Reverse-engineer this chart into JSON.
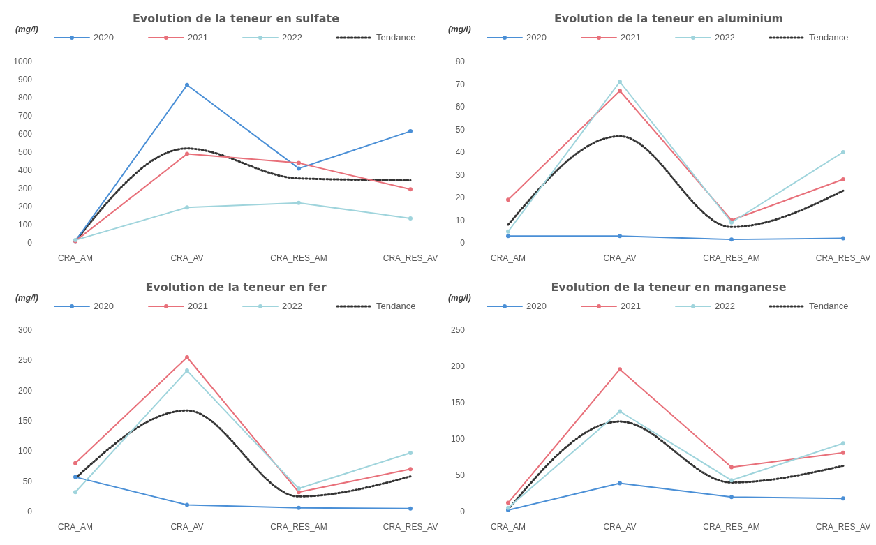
{
  "chart_data": [
    {
      "type": "line",
      "title": "Evolution de la teneur en sulfate",
      "ylabel": "(mg/l)",
      "categories": [
        "CRA_AM",
        "CRA_AV",
        "CRA_RES_AM",
        "CRA_RES_AV"
      ],
      "ylim": [
        0,
        1000
      ],
      "yticks": [
        0,
        100,
        200,
        300,
        400,
        500,
        600,
        700,
        800,
        900,
        1000
      ],
      "legend": "top",
      "marker": "circle",
      "line_style": "solid",
      "series": [
        {
          "name": "2020",
          "color": "#4a8fd6",
          "values": [
            10,
            870,
            410,
            615
          ]
        },
        {
          "name": "2021",
          "color": "#e8707a",
          "values": [
            10,
            490,
            440,
            295
          ]
        },
        {
          "name": "2022",
          "color": "#9fd4dc",
          "values": [
            15,
            195,
            220,
            135
          ]
        },
        {
          "name": "Tendance",
          "color": "#333333",
          "values": [
            10,
            520,
            355,
            345
          ],
          "marker": "none",
          "line_style": "dotted"
        }
      ]
    },
    {
      "type": "line",
      "title": "Evolution de la teneur en aluminium",
      "ylabel": "(mg/l)",
      "categories": [
        "CRA_AM",
        "CRA_AV",
        "CRA_RES_AM",
        "CRA_RES_AV"
      ],
      "ylim": [
        0,
        80
      ],
      "yticks": [
        0,
        10,
        20,
        30,
        40,
        50,
        60,
        70,
        80
      ],
      "legend": "top",
      "marker": "circle",
      "line_style": "solid",
      "series": [
        {
          "name": "2020",
          "color": "#4a8fd6",
          "values": [
            3,
            3,
            1.5,
            2
          ]
        },
        {
          "name": "2021",
          "color": "#e8707a",
          "values": [
            19,
            67,
            10,
            28
          ]
        },
        {
          "name": "2022",
          "color": "#9fd4dc",
          "values": [
            5,
            71,
            9,
            40
          ]
        },
        {
          "name": "Tendance",
          "color": "#333333",
          "values": [
            8,
            47,
            7,
            23
          ],
          "marker": "none",
          "line_style": "dotted"
        }
      ]
    },
    {
      "type": "line",
      "title": "Evolution de la teneur en fer",
      "ylabel": "(mg/l)",
      "categories": [
        "CRA_AM",
        "CRA_AV",
        "CRA_RES_AM",
        "CRA_RES_AV"
      ],
      "ylim": [
        0,
        300
      ],
      "yticks": [
        0,
        50,
        100,
        150,
        200,
        250,
        300
      ],
      "legend": "top",
      "marker": "circle",
      "line_style": "solid",
      "series": [
        {
          "name": "2020",
          "color": "#4a8fd6",
          "values": [
            57,
            11,
            6,
            5
          ]
        },
        {
          "name": "2021",
          "color": "#e8707a",
          "values": [
            80,
            255,
            32,
            70
          ]
        },
        {
          "name": "2022",
          "color": "#9fd4dc",
          "values": [
            32,
            233,
            38,
            97
          ]
        },
        {
          "name": "Tendance",
          "color": "#333333",
          "values": [
            55,
            167,
            25,
            58
          ],
          "marker": "none",
          "line_style": "dotted"
        }
      ]
    },
    {
      "type": "line",
      "title": "Evolution de la teneur en manganese",
      "ylabel": "(mg/l)",
      "categories": [
        "CRA_AM",
        "CRA_AV",
        "CRA_RES_AM",
        "CRA_RES_AV"
      ],
      "ylim": [
        0,
        250
      ],
      "yticks": [
        0,
        50,
        100,
        150,
        200,
        250
      ],
      "legend": "top",
      "marker": "circle",
      "line_style": "solid",
      "series": [
        {
          "name": "2020",
          "color": "#4a8fd6",
          "values": [
            2,
            39,
            20,
            18
          ]
        },
        {
          "name": "2021",
          "color": "#e8707a",
          "values": [
            12,
            196,
            61,
            81
          ]
        },
        {
          "name": "2022",
          "color": "#9fd4dc",
          "values": [
            5,
            138,
            43,
            94
          ]
        },
        {
          "name": "Tendance",
          "color": "#333333",
          "values": [
            3,
            124,
            40,
            63
          ],
          "marker": "none",
          "line_style": "dotted"
        }
      ]
    }
  ]
}
